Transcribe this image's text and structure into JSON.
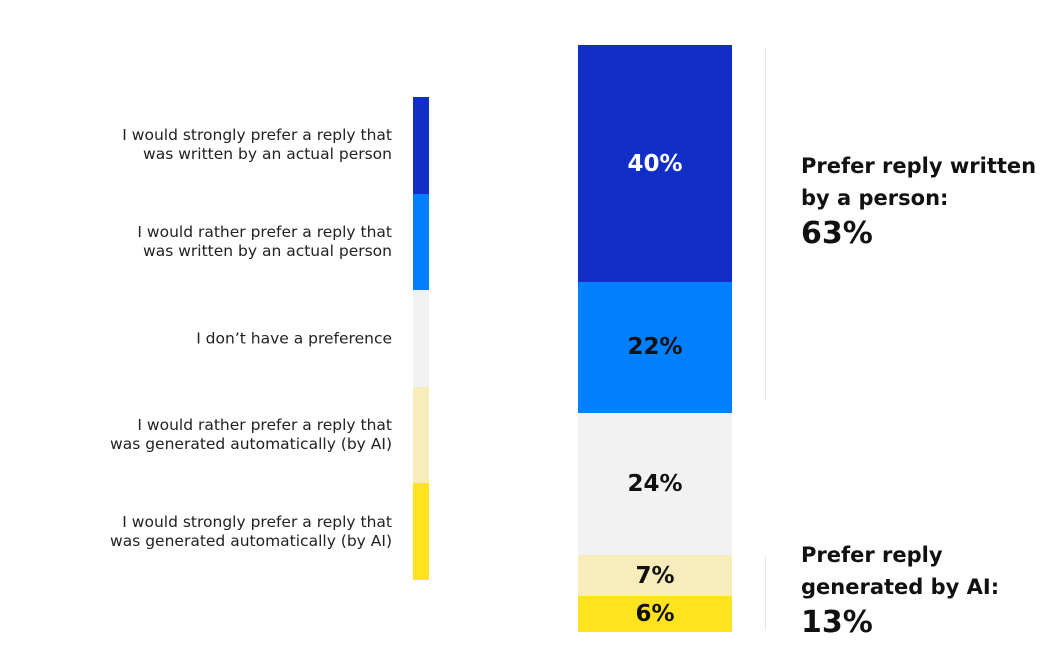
{
  "chart_data": {
    "type": "bar",
    "orientation": "stacked-vertical",
    "categories": [
      "I would strongly prefer a reply that\nwas written by an actual person",
      "I would rather prefer a reply that\nwas written by an actual person",
      "I don’t have a preference",
      "I would rather prefer a reply that\nwas generated automatically (by AI)",
      "I would strongly prefer a reply that\nwas generated automatically (by AI)"
    ],
    "values": [
      40,
      22,
      24,
      7,
      6
    ],
    "value_labels": [
      "40%",
      "22%",
      "24%",
      "7%",
      "6%"
    ],
    "colors": [
      "#112FC6",
      "#0080FF",
      "#F2F2F2",
      "#F8EDBA",
      "#FFE31F"
    ],
    "label_colors": [
      "#FFFFFF",
      "#111111",
      "#111111",
      "#111111",
      "#111111"
    ],
    "legend_placement": "left",
    "annotations": [
      {
        "text": "Prefer reply written\nby a person:",
        "value": "63%"
      },
      {
        "text": "Prefer reply\ngenerated by AI:",
        "value": "13%"
      }
    ]
  }
}
